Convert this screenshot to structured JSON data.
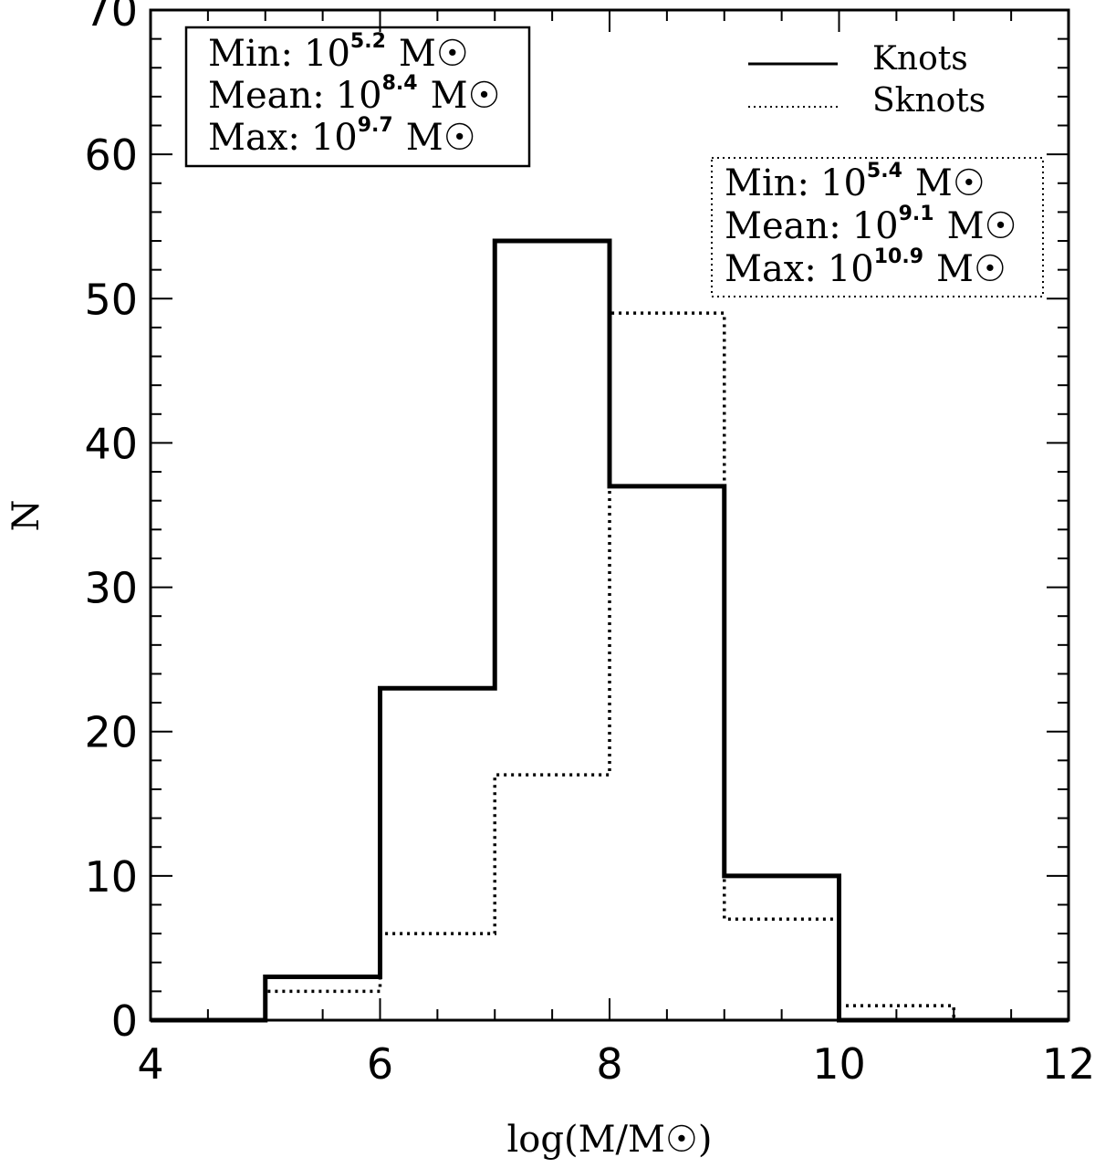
{
  "chart_data": {
    "type": "histogram",
    "xlabel": "log(M/M☉)",
    "ylabel": "N",
    "xlim": [
      4,
      12
    ],
    "ylim": [
      0,
      70
    ],
    "x_ticks": [
      4,
      6,
      8,
      10,
      12
    ],
    "y_ticks": [
      0,
      10,
      20,
      30,
      40,
      50,
      60,
      70
    ],
    "bin_edges": [
      4,
      5,
      6,
      7,
      8,
      9,
      10,
      11,
      12
    ],
    "series": [
      {
        "name": "Knots",
        "style": "solid",
        "values": [
          0,
          3,
          23,
          54,
          37,
          10,
          0,
          0
        ]
      },
      {
        "name": "Sknots",
        "style": "dotted",
        "values": [
          0,
          2,
          6,
          17,
          49,
          7,
          1,
          0
        ]
      }
    ],
    "annotations": [
      {
        "for": "Knots",
        "border": "solid",
        "lines": [
          {
            "label": "Min:",
            "base": "10",
            "exp": "5.2",
            "unit": "M☉"
          },
          {
            "label": "Mean:",
            "base": "10",
            "exp": "8.4",
            "unit": "M☉"
          },
          {
            "label": "Max:",
            "base": "10",
            "exp": "9.7",
            "unit": "M☉"
          }
        ]
      },
      {
        "for": "Sknots",
        "border": "dotted",
        "lines": [
          {
            "label": "Min:",
            "base": "10",
            "exp": "5.4",
            "unit": "M☉"
          },
          {
            "label": "Mean:",
            "base": "10",
            "exp": "9.1",
            "unit": "M☉"
          },
          {
            "label": "Max:",
            "base": "10",
            "exp": "10.9",
            "unit": "M☉"
          }
        ]
      }
    ],
    "legend_position": "top-right",
    "colors": {
      "line": "#000000",
      "background": "#ffffff"
    }
  }
}
